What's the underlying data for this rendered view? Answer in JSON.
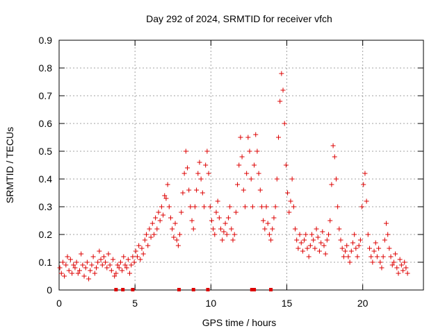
{
  "chart_data": {
    "type": "scatter",
    "title": "Day 292 of 2024, SRMTID for receiver vfch",
    "xlabel": "GPS time / hours",
    "ylabel": "SRMTID / TECUs",
    "xlim": [
      0,
      24
    ],
    "ylim": [
      0,
      0.9
    ],
    "xticks": [
      0,
      5,
      10,
      15,
      20
    ],
    "yticks": [
      0,
      0.1,
      0.2,
      0.3,
      0.4,
      0.5,
      0.6,
      0.7,
      0.8,
      0.9
    ],
    "xtick_labels": [
      "0",
      "5",
      "10",
      "15",
      "20"
    ],
    "ytick_labels": [
      "0",
      "0.1",
      "0.2",
      "0.3",
      "0.4",
      "0.5",
      "0.6",
      "0.7",
      "0.8",
      "0.9"
    ],
    "grid": true,
    "marker": "+",
    "color": "#dd0000",
    "series": [
      {
        "name": "SRMTID",
        "points": [
          [
            0.05,
            0.08
          ],
          [
            0.15,
            0.06
          ],
          [
            0.25,
            0.1
          ],
          [
            0.35,
            0.05
          ],
          [
            0.45,
            0.09
          ],
          [
            0.55,
            0.12
          ],
          [
            0.65,
            0.07
          ],
          [
            0.75,
            0.11
          ],
          [
            0.85,
            0.06
          ],
          [
            0.95,
            0.09
          ],
          [
            1.05,
            0.08
          ],
          [
            1.15,
            0.1
          ],
          [
            1.25,
            0.06
          ],
          [
            1.35,
            0.07
          ],
          [
            1.45,
            0.13
          ],
          [
            1.55,
            0.09
          ],
          [
            1.65,
            0.05
          ],
          [
            1.75,
            0.08
          ],
          [
            1.85,
            0.1
          ],
          [
            1.95,
            0.04
          ],
          [
            2.05,
            0.07
          ],
          [
            2.15,
            0.09
          ],
          [
            2.25,
            0.12
          ],
          [
            2.35,
            0.06
          ],
          [
            2.45,
            0.08
          ],
          [
            2.55,
            0.1
          ],
          [
            2.65,
            0.14
          ],
          [
            2.75,
            0.11
          ],
          [
            2.85,
            0.09
          ],
          [
            2.95,
            0.12
          ],
          [
            3.05,
            0.1
          ],
          [
            3.15,
            0.08
          ],
          [
            3.25,
            0.13
          ],
          [
            3.35,
            0.09
          ],
          [
            3.45,
            0.07
          ],
          [
            3.55,
            0.11
          ],
          [
            3.65,
            0.05
          ],
          [
            3.75,
            0.06
          ],
          [
            3.85,
            0.09
          ],
          [
            3.95,
            0.08
          ],
          [
            4.05,
            0.1
          ],
          [
            4.15,
            0.07
          ],
          [
            4.25,
            0.12
          ],
          [
            4.35,
            0.09
          ],
          [
            4.45,
            0.08
          ],
          [
            4.55,
            0.11
          ],
          [
            4.65,
            0.06
          ],
          [
            4.75,
            0.09
          ],
          [
            4.85,
            0.12
          ],
          [
            4.95,
            0.1
          ],
          [
            5.05,
            0.14
          ],
          [
            5.15,
            0.12
          ],
          [
            5.25,
            0.16
          ],
          [
            5.35,
            0.11
          ],
          [
            5.45,
            0.15
          ],
          [
            5.55,
            0.13
          ],
          [
            5.65,
            0.18
          ],
          [
            5.75,
            0.2
          ],
          [
            5.85,
            0.16
          ],
          [
            5.95,
            0.22
          ],
          [
            6.05,
            0.19
          ],
          [
            6.15,
            0.24
          ],
          [
            6.25,
            0.2
          ],
          [
            6.35,
            0.26
          ],
          [
            6.45,
            0.22
          ],
          [
            6.55,
            0.28
          ],
          [
            6.65,
            0.25
          ],
          [
            6.75,
            0.3
          ],
          [
            6.85,
            0.27
          ],
          [
            6.95,
            0.34
          ],
          [
            7.05,
            0.33
          ],
          [
            7.15,
            0.38
          ],
          [
            7.25,
            0.3
          ],
          [
            7.35,
            0.26
          ],
          [
            7.45,
            0.22
          ],
          [
            7.55,
            0.19
          ],
          [
            7.65,
            0.24
          ],
          [
            7.75,
            0.18
          ],
          [
            7.85,
            0.16
          ],
          [
            7.95,
            0.2
          ],
          [
            8.05,
            0.28
          ],
          [
            8.15,
            0.35
          ],
          [
            8.25,
            0.42
          ],
          [
            8.35,
            0.5
          ],
          [
            8.45,
            0.44
          ],
          [
            8.55,
            0.36
          ],
          [
            8.65,
            0.3
          ],
          [
            8.75,
            0.25
          ],
          [
            8.85,
            0.22
          ],
          [
            8.95,
            0.3
          ],
          [
            9.05,
            0.36
          ],
          [
            9.15,
            0.42
          ],
          [
            9.25,
            0.46
          ],
          [
            9.35,
            0.4
          ],
          [
            9.45,
            0.35
          ],
          [
            9.55,
            0.3
          ],
          [
            9.65,
            0.45
          ],
          [
            9.75,
            0.5
          ],
          [
            9.85,
            0.42
          ],
          [
            9.95,
            0.3
          ],
          [
            10.05,
            0.25
          ],
          [
            10.15,
            0.22
          ],
          [
            10.25,
            0.2
          ],
          [
            10.35,
            0.28
          ],
          [
            10.45,
            0.32
          ],
          [
            10.55,
            0.26
          ],
          [
            10.65,
            0.22
          ],
          [
            10.75,
            0.18
          ],
          [
            10.85,
            0.21
          ],
          [
            10.95,
            0.24
          ],
          [
            11.05,
            0.2
          ],
          [
            11.15,
            0.26
          ],
          [
            11.25,
            0.3
          ],
          [
            11.35,
            0.22
          ],
          [
            11.45,
            0.18
          ],
          [
            11.55,
            0.2
          ],
          [
            11.65,
            0.28
          ],
          [
            11.75,
            0.38
          ],
          [
            11.85,
            0.45
          ],
          [
            11.95,
            0.55
          ],
          [
            12.05,
            0.48
          ],
          [
            12.15,
            0.36
          ],
          [
            12.25,
            0.3
          ],
          [
            12.35,
            0.42
          ],
          [
            12.45,
            0.55
          ],
          [
            12.55,
            0.5
          ],
          [
            12.65,
            0.4
          ],
          [
            12.75,
            0.3
          ],
          [
            12.85,
            0.45
          ],
          [
            12.95,
            0.56
          ],
          [
            13.05,
            0.5
          ],
          [
            13.15,
            0.42
          ],
          [
            13.25,
            0.36
          ],
          [
            13.35,
            0.3
          ],
          [
            13.45,
            0.25
          ],
          [
            13.55,
            0.22
          ],
          [
            13.65,
            0.3
          ],
          [
            13.75,
            0.24
          ],
          [
            13.85,
            0.2
          ],
          [
            13.95,
            0.18
          ],
          [
            14.05,
            0.22
          ],
          [
            14.15,
            0.26
          ],
          [
            14.25,
            0.3
          ],
          [
            14.35,
            0.4
          ],
          [
            14.45,
            0.55
          ],
          [
            14.55,
            0.68
          ],
          [
            14.65,
            0.78
          ],
          [
            14.75,
            0.72
          ],
          [
            14.85,
            0.6
          ],
          [
            14.95,
            0.45
          ],
          [
            15.05,
            0.35
          ],
          [
            15.15,
            0.28
          ],
          [
            15.25,
            0.32
          ],
          [
            15.35,
            0.4
          ],
          [
            15.45,
            0.3
          ],
          [
            15.55,
            0.22
          ],
          [
            15.65,
            0.18
          ],
          [
            15.75,
            0.15
          ],
          [
            15.85,
            0.2
          ],
          [
            15.95,
            0.17
          ],
          [
            16.05,
            0.14
          ],
          [
            16.15,
            0.18
          ],
          [
            16.25,
            0.2
          ],
          [
            16.35,
            0.15
          ],
          [
            16.45,
            0.12
          ],
          [
            16.55,
            0.16
          ],
          [
            16.65,
            0.2
          ],
          [
            16.75,
            0.18
          ],
          [
            16.85,
            0.15
          ],
          [
            16.95,
            0.22
          ],
          [
            17.05,
            0.19
          ],
          [
            17.15,
            0.14
          ],
          [
            17.25,
            0.17
          ],
          [
            17.35,
            0.21
          ],
          [
            17.45,
            0.16
          ],
          [
            17.55,
            0.13
          ],
          [
            17.65,
            0.18
          ],
          [
            17.75,
            0.2
          ],
          [
            17.85,
            0.25
          ],
          [
            17.95,
            0.38
          ],
          [
            18.05,
            0.52
          ],
          [
            18.15,
            0.48
          ],
          [
            18.25,
            0.4
          ],
          [
            18.35,
            0.3
          ],
          [
            18.45,
            0.22
          ],
          [
            18.55,
            0.18
          ],
          [
            18.65,
            0.15
          ],
          [
            18.75,
            0.12
          ],
          [
            18.85,
            0.14
          ],
          [
            18.95,
            0.16
          ],
          [
            19.05,
            0.12
          ],
          [
            19.15,
            0.1
          ],
          [
            19.25,
            0.14
          ],
          [
            19.35,
            0.17
          ],
          [
            19.45,
            0.2
          ],
          [
            19.55,
            0.15
          ],
          [
            19.65,
            0.12
          ],
          [
            19.75,
            0.16
          ],
          [
            19.85,
            0.18
          ],
          [
            19.95,
            0.3
          ],
          [
            20.05,
            0.38
          ],
          [
            20.15,
            0.42
          ],
          [
            20.25,
            0.32
          ],
          [
            20.35,
            0.2
          ],
          [
            20.45,
            0.15
          ],
          [
            20.55,
            0.12
          ],
          [
            20.65,
            0.1
          ],
          [
            20.75,
            0.14
          ],
          [
            20.85,
            0.17
          ],
          [
            20.95,
            0.12
          ],
          [
            21.05,
            0.15
          ],
          [
            21.15,
            0.1
          ],
          [
            21.25,
            0.08
          ],
          [
            21.35,
            0.12
          ],
          [
            21.45,
            0.18
          ],
          [
            21.55,
            0.24
          ],
          [
            21.65,
            0.2
          ],
          [
            21.75,
            0.15
          ],
          [
            21.85,
            0.12
          ],
          [
            21.95,
            0.09
          ],
          [
            22.05,
            0.1
          ],
          [
            22.15,
            0.13
          ],
          [
            22.25,
            0.08
          ],
          [
            22.35,
            0.06
          ],
          [
            22.45,
            0.11
          ],
          [
            22.55,
            0.09
          ],
          [
            22.65,
            0.07
          ],
          [
            22.75,
            0.1
          ],
          [
            22.85,
            0.08
          ],
          [
            22.95,
            0.06
          ]
        ]
      }
    ],
    "baseline_markers": [
      3.75,
      4.2,
      4.85,
      7.9,
      8.85,
      9.8,
      12.7,
      12.85,
      13.95
    ]
  }
}
